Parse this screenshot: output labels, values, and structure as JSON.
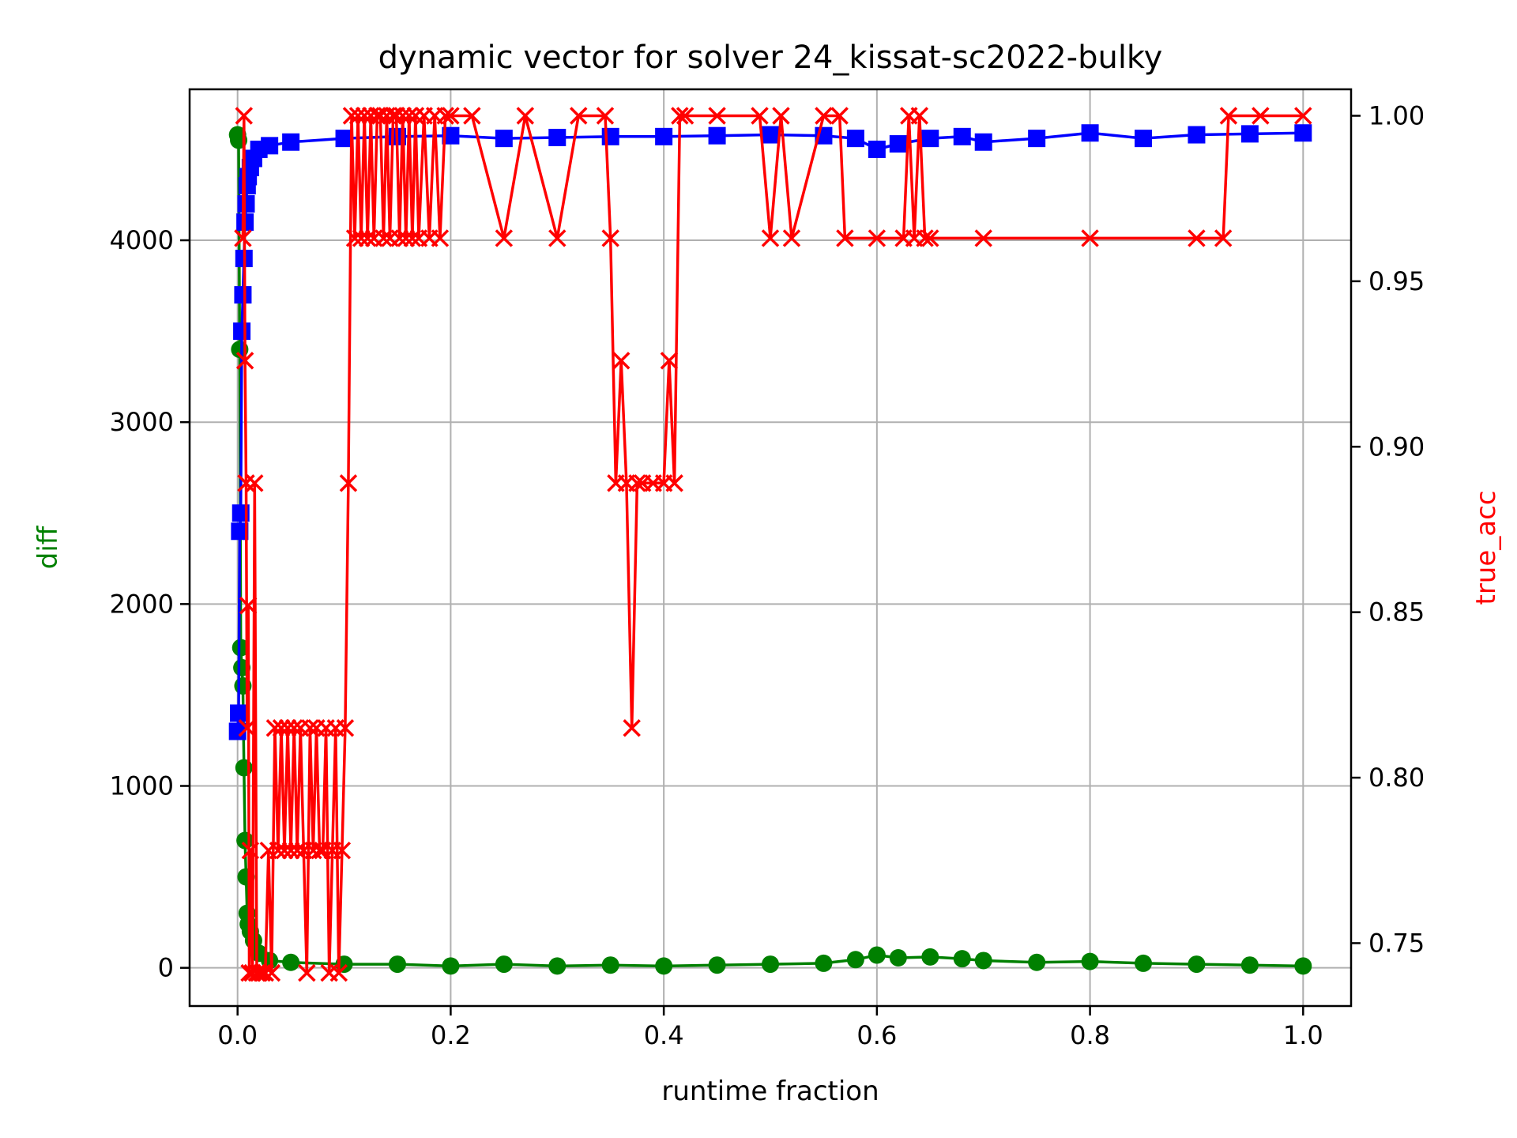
{
  "chart_data": {
    "type": "line",
    "title": "dynamic vector for solver 24_kissat-sc2022-bulky",
    "xlabel": "runtime fraction",
    "ylabel_left": "diff",
    "ylabel_right": "true_acc",
    "xlim": [
      -0.045,
      1.045
    ],
    "ylim_left": [
      -210,
      4830
    ],
    "ylim_right": [
      0.731,
      1.008
    ],
    "x_ticks": [
      0.0,
      0.2,
      0.4,
      0.6,
      0.8,
      1.0
    ],
    "x_tick_labels": [
      "0.0",
      "0.2",
      "0.4",
      "0.6",
      "0.8",
      "1.0"
    ],
    "y_left_ticks": [
      0,
      1000,
      2000,
      3000,
      4000
    ],
    "y_left_tick_labels": [
      "0",
      "1000",
      "2000",
      "3000",
      "4000"
    ],
    "y_right_ticks": [
      0.75,
      0.8,
      0.85,
      0.9,
      0.95,
      1.0
    ],
    "y_right_tick_labels": [
      "0.75",
      "0.80",
      "0.85",
      "0.90",
      "0.95",
      "1.00"
    ],
    "grid": true,
    "colors": {
      "diff": "#008000",
      "blue": "#0000ff",
      "true_acc": "#ff0000"
    },
    "series": [
      {
        "axis": "left",
        "color": "#008000",
        "marker": "circle",
        "x": [
          0.0,
          0.001,
          0.002,
          0.003,
          0.004,
          0.005,
          0.006,
          0.007,
          0.008,
          0.009,
          0.01,
          0.012,
          0.015,
          0.02,
          0.03,
          0.05,
          0.1,
          0.15,
          0.2,
          0.25,
          0.3,
          0.35,
          0.4,
          0.45,
          0.5,
          0.55,
          0.58,
          0.6,
          0.62,
          0.65,
          0.68,
          0.7,
          0.75,
          0.8,
          0.85,
          0.9,
          0.95,
          1.0
        ],
        "y": [
          4580,
          4550,
          3400,
          1760,
          1650,
          1550,
          1100,
          700,
          500,
          300,
          240,
          200,
          150,
          80,
          40,
          30,
          20,
          20,
          10,
          20,
          10,
          15,
          10,
          15,
          20,
          25,
          45,
          70,
          55,
          60,
          50,
          40,
          30,
          35,
          25,
          20,
          15,
          10
        ]
      },
      {
        "axis": "left",
        "color": "#0000ff",
        "marker": "square",
        "x": [
          0.0,
          0.001,
          0.002,
          0.003,
          0.004,
          0.005,
          0.006,
          0.007,
          0.008,
          0.009,
          0.01,
          0.012,
          0.015,
          0.02,
          0.03,
          0.05,
          0.1,
          0.15,
          0.2,
          0.25,
          0.3,
          0.35,
          0.4,
          0.45,
          0.5,
          0.55,
          0.58,
          0.6,
          0.62,
          0.65,
          0.68,
          0.7,
          0.75,
          0.8,
          0.85,
          0.9,
          0.95,
          1.0
        ],
        "y": [
          1300,
          1400,
          2400,
          2500,
          3500,
          3700,
          3900,
          4100,
          4200,
          4300,
          4350,
          4400,
          4450,
          4500,
          4520,
          4540,
          4560,
          4570,
          4575,
          4560,
          4565,
          4570,
          4570,
          4575,
          4580,
          4575,
          4560,
          4500,
          4530,
          4560,
          4570,
          4540,
          4560,
          4590,
          4560,
          4580,
          4585,
          4590
        ]
      },
      {
        "axis": "right",
        "color": "#ff0000",
        "marker": "x",
        "x": [
          0.005,
          0.006,
          0.007,
          0.008,
          0.009,
          0.01,
          0.011,
          0.012,
          0.014,
          0.016,
          0.018,
          0.02,
          0.023,
          0.026,
          0.029,
          0.032,
          0.035,
          0.038,
          0.041,
          0.044,
          0.047,
          0.05,
          0.053,
          0.056,
          0.059,
          0.062,
          0.065,
          0.068,
          0.071,
          0.074,
          0.077,
          0.08,
          0.083,
          0.086,
          0.089,
          0.092,
          0.095,
          0.098,
          0.101,
          0.104,
          0.107,
          0.11,
          0.113,
          0.116,
          0.119,
          0.122,
          0.125,
          0.128,
          0.131,
          0.134,
          0.137,
          0.14,
          0.143,
          0.146,
          0.149,
          0.152,
          0.155,
          0.158,
          0.161,
          0.164,
          0.167,
          0.17,
          0.175,
          0.18,
          0.185,
          0.19,
          0.195,
          0.2,
          0.22,
          0.25,
          0.27,
          0.3,
          0.32,
          0.345,
          0.35,
          0.355,
          0.36,
          0.365,
          0.37,
          0.375,
          0.38,
          0.39,
          0.4,
          0.405,
          0.41,
          0.415,
          0.42,
          0.45,
          0.49,
          0.5,
          0.51,
          0.52,
          0.55,
          0.565,
          0.57,
          0.6,
          0.625,
          0.63,
          0.635,
          0.64,
          0.645,
          0.65,
          0.7,
          0.8,
          0.9,
          0.925,
          0.93,
          0.96,
          1.0
        ],
        "y": [
          0.963,
          1.0,
          0.926,
          0.889,
          0.815,
          0.852,
          0.741,
          0.778,
          0.741,
          0.889,
          0.741,
          0.741,
          0.741,
          0.741,
          0.778,
          0.741,
          0.815,
          0.778,
          0.815,
          0.778,
          0.815,
          0.778,
          0.815,
          0.778,
          0.815,
          0.778,
          0.741,
          0.815,
          0.778,
          0.815,
          0.778,
          0.778,
          0.815,
          0.741,
          0.778,
          0.815,
          0.741,
          0.778,
          0.815,
          0.889,
          1.0,
          0.963,
          1.0,
          0.963,
          1.0,
          0.963,
          1.0,
          0.963,
          1.0,
          1.0,
          0.963,
          1.0,
          0.963,
          1.0,
          1.0,
          0.963,
          1.0,
          0.963,
          1.0,
          0.963,
          1.0,
          0.963,
          1.0,
          0.963,
          1.0,
          0.963,
          1.0,
          1.0,
          1.0,
          0.963,
          1.0,
          0.963,
          1.0,
          1.0,
          0.963,
          0.889,
          0.926,
          0.889,
          0.815,
          0.889,
          0.889,
          0.889,
          0.889,
          0.926,
          0.889,
          1.0,
          1.0,
          1.0,
          1.0,
          0.963,
          1.0,
          0.963,
          1.0,
          1.0,
          0.963,
          0.963,
          0.963,
          1.0,
          0.963,
          1.0,
          0.963,
          0.963,
          0.963,
          0.963,
          0.963,
          0.963,
          1.0,
          1.0,
          1.0
        ]
      }
    ]
  }
}
